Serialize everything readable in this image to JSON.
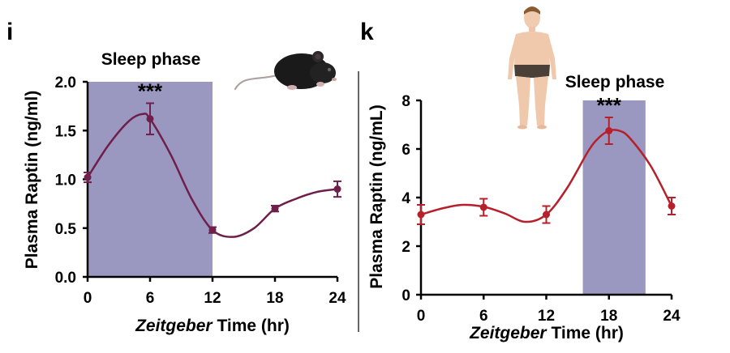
{
  "chart_data": [
    {
      "panel_label": "i",
      "type": "line",
      "annotation": "Sleep phase",
      "significance": "***",
      "shaded_region": {
        "x": [
          0,
          12
        ],
        "color": "#9a97c0"
      },
      "line_color": "#6e1f4a",
      "xlabel_italic": "Zeitgeber",
      "xlabel_rest": " Time (hr)",
      "ylabel": "Plasma Raptin (ng/ml)",
      "xlim": [
        0,
        24
      ],
      "ylim": [
        0,
        2.0
      ],
      "xticks": [
        0,
        6,
        12,
        18,
        24
      ],
      "yticks": [
        "0.0",
        "0.5",
        "1.0",
        "1.5",
        "2.0"
      ],
      "points": [
        {
          "x": 0,
          "y": 1.02,
          "err": 0.05
        },
        {
          "x": 6,
          "y": 1.62,
          "err": 0.16
        },
        {
          "x": 12,
          "y": 0.48,
          "err": 0.03
        },
        {
          "x": 18,
          "y": 0.7,
          "err": 0.03
        },
        {
          "x": 24,
          "y": 0.9,
          "err": 0.08
        }
      ],
      "curve": [
        [
          0,
          1.02
        ],
        [
          2,
          1.35
        ],
        [
          4,
          1.6
        ],
        [
          5.3,
          1.67
        ],
        [
          6,
          1.62
        ],
        [
          8,
          1.25
        ],
        [
          10,
          0.8
        ],
        [
          12,
          0.48
        ],
        [
          14,
          0.41
        ],
        [
          16,
          0.5
        ],
        [
          18,
          0.7
        ],
        [
          20,
          0.8
        ],
        [
          22,
          0.87
        ],
        [
          24,
          0.9
        ]
      ],
      "significance_x": 6,
      "illustration": "mouse"
    },
    {
      "panel_label": "k",
      "type": "line",
      "annotation": "Sleep phase",
      "significance": "***",
      "shaded_region": {
        "x": [
          15.5,
          21.5
        ],
        "color": "#9a97c0"
      },
      "line_color": "#b5202a",
      "xlabel_italic": "Zeitgeber",
      "xlabel_rest": " Time (hr)",
      "ylabel": "Plasma Raptin  (ng/mL)",
      "xlim": [
        0,
        24
      ],
      "ylim": [
        0,
        8
      ],
      "xticks": [
        0,
        6,
        12,
        18,
        24
      ],
      "yticks": [
        "0",
        "2",
        "4",
        "6",
        "8"
      ],
      "points": [
        {
          "x": 0,
          "y": 3.3,
          "err": 0.4
        },
        {
          "x": 6,
          "y": 3.6,
          "err": 0.35
        },
        {
          "x": 12,
          "y": 3.3,
          "err": 0.35
        },
        {
          "x": 18,
          "y": 6.75,
          "err": 0.55
        },
        {
          "x": 24,
          "y": 3.65,
          "err": 0.35
        }
      ],
      "curve": [
        [
          0,
          3.3
        ],
        [
          2,
          3.55
        ],
        [
          4,
          3.7
        ],
        [
          6,
          3.62
        ],
        [
          8,
          3.35
        ],
        [
          10,
          3.0
        ],
        [
          12,
          3.3
        ],
        [
          14,
          4.4
        ],
        [
          16,
          5.9
        ],
        [
          17,
          6.45
        ],
        [
          18,
          6.75
        ],
        [
          19,
          6.75
        ],
        [
          20,
          6.45
        ],
        [
          22,
          5.3
        ],
        [
          24,
          3.65
        ]
      ],
      "significance_x": 18,
      "illustration": "human"
    }
  ]
}
